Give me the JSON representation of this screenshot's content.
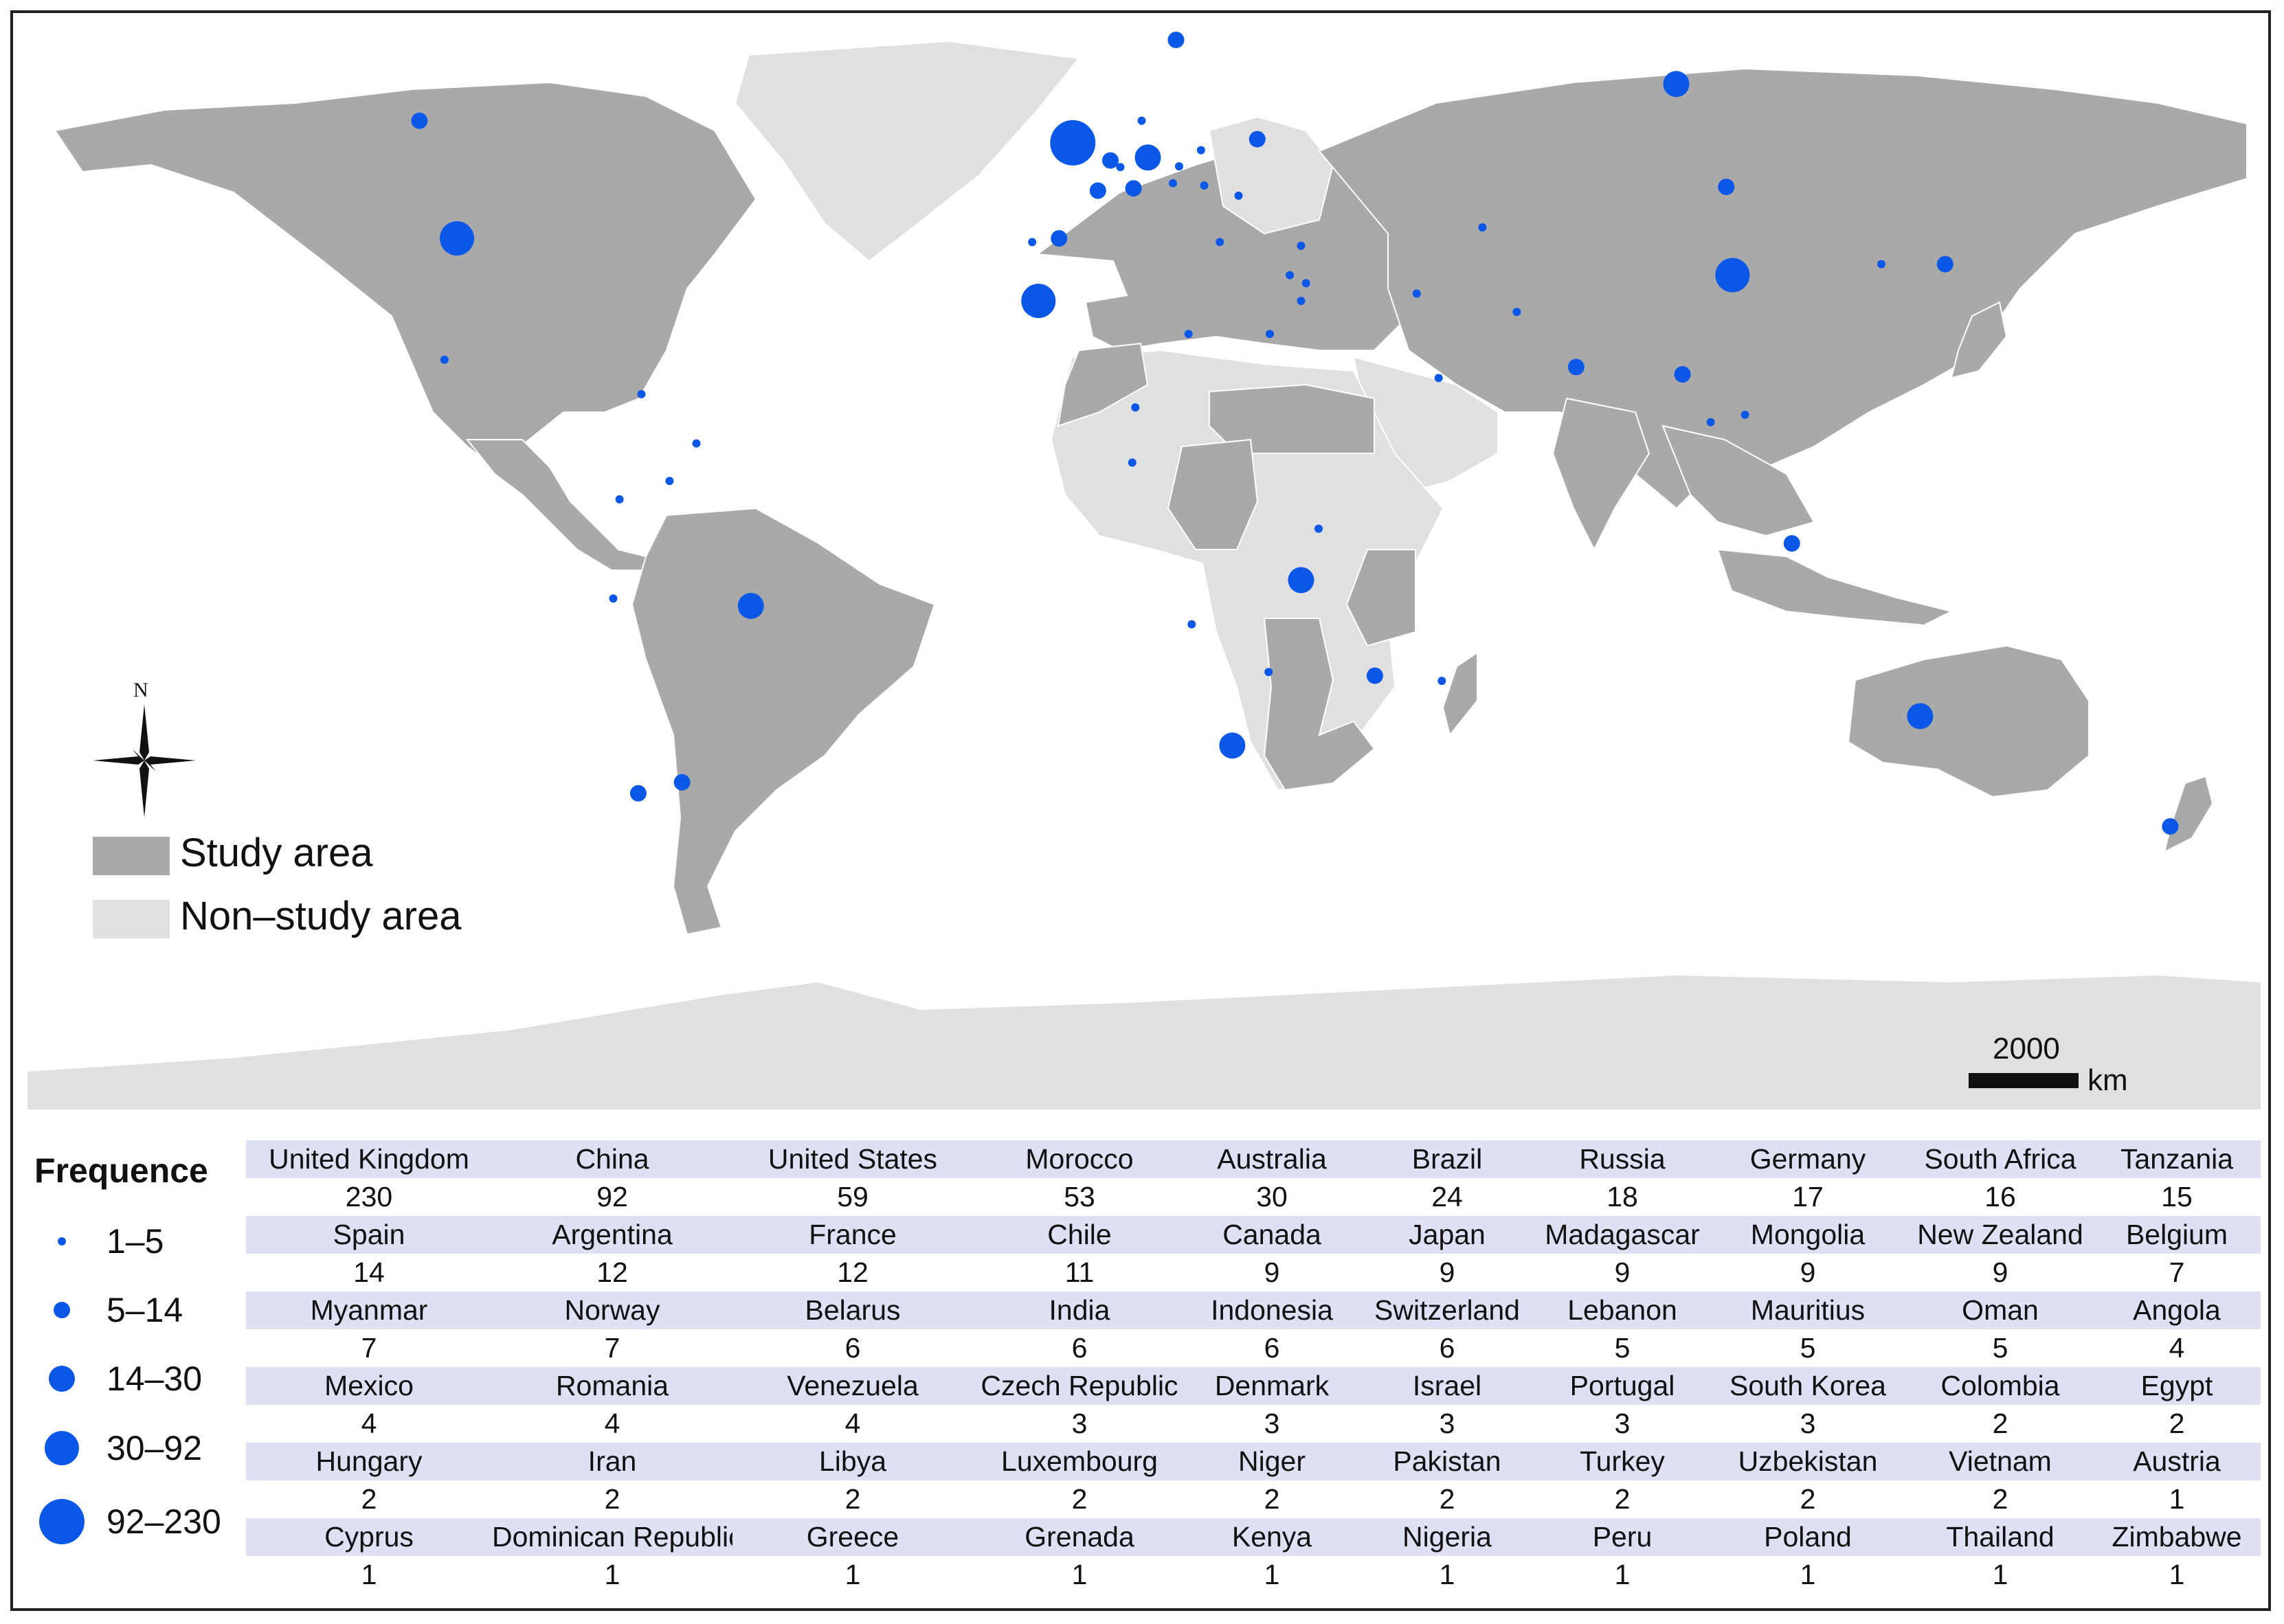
{
  "legend": {
    "study_area_label": "Study area",
    "non_study_area_label": "Non–study area",
    "study_color": "#a9a9a9",
    "non_study_color": "#e0e0e0"
  },
  "compass": {
    "label": "N"
  },
  "scale": {
    "value": "2000",
    "unit": "km"
  },
  "frequency_legend": {
    "title": "Frequence",
    "dot_color": "#0b57e8",
    "classes": [
      {
        "label": "1–5"
      },
      {
        "label": "5–14"
      },
      {
        "label": "14–30"
      },
      {
        "label": "30–92"
      },
      {
        "label": "92–230"
      }
    ]
  },
  "table": {
    "rows": [
      {
        "names": [
          "United Kingdom",
          "China",
          "United States",
          "Morocco",
          "Australia",
          "Brazil",
          "Russia",
          "Germany",
          "South Africa",
          "Tanzania"
        ],
        "values": [
          "230",
          "92",
          "59",
          "53",
          "30",
          "24",
          "18",
          "17",
          "16",
          "15"
        ]
      },
      {
        "names": [
          "Spain",
          "Argentina",
          "France",
          "Chile",
          "Canada",
          "Japan",
          "Madagascar",
          "Mongolia",
          "New Zealand",
          "Belgium"
        ],
        "values": [
          "14",
          "12",
          "12",
          "11",
          "9",
          "9",
          "9",
          "9",
          "9",
          "7"
        ]
      },
      {
        "names": [
          "Myanmar",
          "Norway",
          "Belarus",
          "India",
          "Indonesia",
          "Switzerland",
          "Lebanon",
          "Mauritius",
          "Oman",
          "Angola"
        ],
        "values": [
          "7",
          "7",
          "6",
          "6",
          "6",
          "6",
          "5",
          "5",
          "5",
          "4"
        ]
      },
      {
        "names": [
          "Mexico",
          "Romania",
          "Venezuela",
          "Czech Republic",
          "Denmark",
          "Israel",
          "Portugal",
          "South Korea",
          "Colombia",
          "Egypt"
        ],
        "values": [
          "4",
          "4",
          "4",
          "3",
          "3",
          "3",
          "3",
          "3",
          "2",
          "2"
        ]
      },
      {
        "names": [
          "Hungary",
          "Iran",
          "Libya",
          "Luxembourg",
          "Niger",
          "Pakistan",
          "Turkey",
          "Uzbekistan",
          "Vietnam",
          "Austria"
        ],
        "values": [
          "2",
          "2",
          "2",
          "2",
          "2",
          "2",
          "2",
          "2",
          "2",
          "1"
        ]
      },
      {
        "names": [
          "Cyprus",
          "Dominican Republic",
          "Greece",
          "Grenada",
          "Kenya",
          "Nigeria",
          "Peru",
          "Poland",
          "Thailand",
          "Zimbabwe"
        ],
        "values": [
          "1",
          "1",
          "1",
          "1",
          "1",
          "1",
          "1",
          "1",
          "1",
          "1"
        ]
      }
    ]
  },
  "map_points": [
    {
      "country": "United Kingdom",
      "frequency": 230,
      "lon": -1.5,
      "lat": 53.0
    },
    {
      "country": "China",
      "frequency": 92,
      "lon": 104.0,
      "lat": 35.0
    },
    {
      "country": "United States",
      "frequency": 59,
      "lon": -100.0,
      "lat": 40.0
    },
    {
      "country": "Morocco",
      "frequency": 53,
      "lon": -7.0,
      "lat": 31.5
    },
    {
      "country": "Australia",
      "frequency": 30,
      "lon": 134.0,
      "lat": -25.0
    },
    {
      "country": "Brazil",
      "frequency": 24,
      "lon": -53.0,
      "lat": -10.0
    },
    {
      "country": "Russia",
      "frequency": 18,
      "lon": 95.0,
      "lat": 61.0
    },
    {
      "country": "Germany",
      "frequency": 17,
      "lon": 10.5,
      "lat": 51.0
    },
    {
      "country": "South Africa",
      "frequency": 16,
      "lon": 24.0,
      "lat": -29.0
    },
    {
      "country": "Tanzania",
      "frequency": 15,
      "lon": 35.0,
      "lat": -6.5
    },
    {
      "country": "Spain",
      "frequency": 14,
      "lon": -3.7,
      "lat": 40.0
    },
    {
      "country": "Argentina",
      "frequency": 12,
      "lon": -64.0,
      "lat": -34.0
    },
    {
      "country": "France",
      "frequency": 12,
      "lon": 2.5,
      "lat": 46.5
    },
    {
      "country": "Chile",
      "frequency": 11,
      "lon": -71.0,
      "lat": -35.5
    },
    {
      "country": "Canada",
      "frequency": 9,
      "lon": -106.0,
      "lat": 56.0
    },
    {
      "country": "Japan",
      "frequency": 9,
      "lon": 138.0,
      "lat": 36.5
    },
    {
      "country": "Madagascar",
      "frequency": 9,
      "lon": 46.8,
      "lat": -19.5
    },
    {
      "country": "Mongolia",
      "frequency": 9,
      "lon": 103.0,
      "lat": 47.0
    },
    {
      "country": "New Zealand",
      "frequency": 9,
      "lon": 174.0,
      "lat": -40.0
    },
    {
      "country": "Belgium",
      "frequency": 7,
      "lon": 4.5,
      "lat": 50.6
    },
    {
      "country": "Myanmar",
      "frequency": 7,
      "lon": 96.0,
      "lat": 21.5
    },
    {
      "country": "Norway",
      "frequency": 7,
      "lon": 15.0,
      "lat": 67.0
    },
    {
      "country": "Belarus",
      "frequency": 6,
      "lon": 28.0,
      "lat": 53.5
    },
    {
      "country": "India",
      "frequency": 6,
      "lon": 79.0,
      "lat": 22.5
    },
    {
      "country": "Indonesia",
      "frequency": 6,
      "lon": 113.5,
      "lat": -1.5
    },
    {
      "country": "Switzerland",
      "frequency": 6,
      "lon": 8.2,
      "lat": 46.8
    },
    {
      "country": "Lebanon",
      "frequency": 5,
      "lon": 35.8,
      "lat": 33.9
    },
    {
      "country": "Mauritius",
      "frequency": 5,
      "lon": 57.5,
      "lat": -20.2
    },
    {
      "country": "Oman",
      "frequency": 5,
      "lon": 57.0,
      "lat": 21.0
    },
    {
      "country": "Angola",
      "frequency": 4,
      "lon": 17.5,
      "lat": -12.5
    },
    {
      "country": "Mexico",
      "frequency": 4,
      "lon": -102.0,
      "lat": 23.5
    },
    {
      "country": "Romania",
      "frequency": 4,
      "lon": 25.0,
      "lat": 45.8
    },
    {
      "country": "Venezuela",
      "frequency": 4,
      "lon": -66.0,
      "lat": 7.0
    },
    {
      "country": "Czech Republic",
      "frequency": 3,
      "lon": 15.5,
      "lat": 49.8
    },
    {
      "country": "Denmark",
      "frequency": 3,
      "lon": 9.5,
      "lat": 56.0
    },
    {
      "country": "Israel",
      "frequency": 3,
      "lon": 35.0,
      "lat": 31.5
    },
    {
      "country": "Portugal",
      "frequency": 3,
      "lon": -8.0,
      "lat": 39.5
    },
    {
      "country": "South Korea",
      "frequency": 3,
      "lon": 127.8,
      "lat": 36.5
    },
    {
      "country": "Colombia",
      "frequency": 2,
      "lon": -74.0,
      "lat": 4.5
    },
    {
      "country": "Egypt",
      "frequency": 2,
      "lon": 30.0,
      "lat": 27.0
    },
    {
      "country": "Hungary",
      "frequency": 2,
      "lon": 19.5,
      "lat": 47.2
    },
    {
      "country": "Iran",
      "frequency": 2,
      "lon": 53.5,
      "lat": 32.5
    },
    {
      "country": "Libya",
      "frequency": 2,
      "lon": 17.0,
      "lat": 27.0
    },
    {
      "country": "Luxembourg",
      "frequency": 2,
      "lon": 6.1,
      "lat": 49.7
    },
    {
      "country": "Niger",
      "frequency": 2,
      "lon": 8.5,
      "lat": 17.0
    },
    {
      "country": "Pakistan",
      "frequency": 2,
      "lon": 69.5,
      "lat": 30.0
    },
    {
      "country": "Turkey",
      "frequency": 2,
      "lon": 35.0,
      "lat": 39.0
    },
    {
      "country": "Uzbekistan",
      "frequency": 2,
      "lon": 64.0,
      "lat": 41.5
    },
    {
      "country": "Vietnam",
      "frequency": 2,
      "lon": 106.0,
      "lat": 16.0
    },
    {
      "country": "Austria",
      "frequency": 1,
      "lon": 14.5,
      "lat": 47.5
    },
    {
      "country": "Cyprus",
      "frequency": 1,
      "lon": 33.2,
      "lat": 35.0
    },
    {
      "country": "Dominican Republic",
      "frequency": 1,
      "lon": -70.5,
      "lat": 18.8
    },
    {
      "country": "Greece",
      "frequency": 1,
      "lon": 22.0,
      "lat": 39.5
    },
    {
      "country": "Grenada",
      "frequency": 1,
      "lon": -61.7,
      "lat": 12.1
    },
    {
      "country": "Kenya",
      "frequency": 1,
      "lon": 37.8,
      "lat": 0.5
    },
    {
      "country": "Nigeria",
      "frequency": 1,
      "lon": 8.0,
      "lat": 9.5
    },
    {
      "country": "Peru",
      "frequency": 1,
      "lon": -75.0,
      "lat": -9.0
    },
    {
      "country": "Poland",
      "frequency": 1,
      "lon": 19.0,
      "lat": 52.0
    },
    {
      "country": "Thailand",
      "frequency": 1,
      "lon": 100.5,
      "lat": 15.0
    },
    {
      "country": "Zimbabwe",
      "frequency": 1,
      "lon": 29.8,
      "lat": -19.0
    }
  ]
}
